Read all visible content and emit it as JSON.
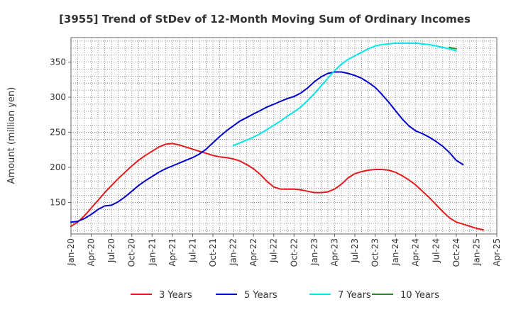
{
  "chart_data": {
    "type": "line",
    "title": "[3955]  Trend of StDev of 12-Month Moving Sum of Ordinary Incomes",
    "xlabel": "",
    "ylabel": "Amount (million yen)",
    "ylim": [
      105,
      385
    ],
    "yticks": [
      150,
      200,
      250,
      300,
      350
    ],
    "xticks": [
      "Jan-20",
      "Apr-20",
      "Jul-20",
      "Oct-20",
      "Jan-21",
      "Apr-21",
      "Jul-21",
      "Oct-21",
      "Jan-22",
      "Apr-22",
      "Jul-22",
      "Oct-22",
      "Jan-23",
      "Apr-23",
      "Jul-23",
      "Oct-23",
      "Jan-24",
      "Apr-24",
      "Jul-24",
      "Oct-24",
      "Jan-25",
      "Apr-25"
    ],
    "grid": true,
    "legend_position": "bottom",
    "series": [
      {
        "name": "3 Years",
        "color": "#e41a1c",
        "points": [
          [
            0,
            116
          ],
          [
            1,
            122
          ],
          [
            2,
            131
          ],
          [
            3,
            142
          ],
          [
            4,
            153
          ],
          [
            5,
            164
          ],
          [
            6,
            174
          ],
          [
            7,
            184
          ],
          [
            8,
            193
          ],
          [
            9,
            202
          ],
          [
            10,
            210
          ],
          [
            11,
            217
          ],
          [
            12,
            223
          ],
          [
            13,
            229
          ],
          [
            14,
            233
          ],
          [
            15,
            234
          ],
          [
            16,
            232
          ],
          [
            17,
            229
          ],
          [
            18,
            226
          ],
          [
            19,
            223
          ],
          [
            20,
            220
          ],
          [
            21,
            217
          ],
          [
            22,
            215
          ],
          [
            23,
            214
          ],
          [
            24,
            212
          ],
          [
            25,
            209
          ],
          [
            26,
            204
          ],
          [
            27,
            198
          ],
          [
            28,
            190
          ],
          [
            29,
            180
          ],
          [
            30,
            172
          ],
          [
            31,
            169
          ],
          [
            32,
            169
          ],
          [
            33,
            169
          ],
          [
            34,
            168
          ],
          [
            35,
            166
          ],
          [
            36,
            164
          ],
          [
            37,
            164
          ],
          [
            38,
            165
          ],
          [
            39,
            169
          ],
          [
            40,
            176
          ],
          [
            41,
            185
          ],
          [
            42,
            191
          ],
          [
            43,
            194
          ],
          [
            44,
            196
          ],
          [
            45,
            197
          ],
          [
            46,
            197
          ],
          [
            47,
            196
          ],
          [
            48,
            193
          ],
          [
            49,
            188
          ],
          [
            50,
            182
          ],
          [
            51,
            175
          ],
          [
            52,
            166
          ],
          [
            53,
            157
          ],
          [
            54,
            147
          ],
          [
            55,
            137
          ],
          [
            56,
            128
          ],
          [
            57,
            122
          ],
          [
            58,
            119
          ],
          [
            59,
            116
          ],
          [
            60,
            113
          ],
          [
            61,
            111
          ]
        ]
      },
      {
        "name": "5 Years",
        "color": "#0000cd",
        "points": [
          [
            0,
            122
          ],
          [
            1,
            123
          ],
          [
            2,
            127
          ],
          [
            3,
            133
          ],
          [
            4,
            140
          ],
          [
            5,
            145
          ],
          [
            6,
            146
          ],
          [
            7,
            151
          ],
          [
            8,
            158
          ],
          [
            9,
            166
          ],
          [
            10,
            174
          ],
          [
            11,
            181
          ],
          [
            12,
            187
          ],
          [
            13,
            193
          ],
          [
            14,
            198
          ],
          [
            15,
            202
          ],
          [
            16,
            206
          ],
          [
            17,
            210
          ],
          [
            18,
            214
          ],
          [
            19,
            219
          ],
          [
            20,
            226
          ],
          [
            21,
            235
          ],
          [
            22,
            244
          ],
          [
            23,
            252
          ],
          [
            24,
            259
          ],
          [
            25,
            266
          ],
          [
            26,
            271
          ],
          [
            27,
            276
          ],
          [
            28,
            281
          ],
          [
            29,
            286
          ],
          [
            30,
            290
          ],
          [
            31,
            294
          ],
          [
            32,
            298
          ],
          [
            33,
            301
          ],
          [
            34,
            306
          ],
          [
            35,
            313
          ],
          [
            36,
            322
          ],
          [
            37,
            329
          ],
          [
            38,
            334
          ],
          [
            39,
            336
          ],
          [
            40,
            336
          ],
          [
            41,
            334
          ],
          [
            42,
            331
          ],
          [
            43,
            327
          ],
          [
            44,
            321
          ],
          [
            45,
            314
          ],
          [
            46,
            304
          ],
          [
            47,
            293
          ],
          [
            48,
            281
          ],
          [
            49,
            269
          ],
          [
            50,
            259
          ],
          [
            51,
            252
          ],
          [
            52,
            248
          ],
          [
            53,
            243
          ],
          [
            54,
            237
          ],
          [
            55,
            230
          ],
          [
            56,
            221
          ],
          [
            57,
            210
          ],
          [
            58,
            204
          ]
        ]
      },
      {
        "name": "7 Years",
        "color": "#00e5ee",
        "points": [
          [
            24,
            231
          ],
          [
            25,
            235
          ],
          [
            26,
            239
          ],
          [
            27,
            243
          ],
          [
            28,
            248
          ],
          [
            29,
            254
          ],
          [
            30,
            260
          ],
          [
            31,
            266
          ],
          [
            32,
            273
          ],
          [
            33,
            279
          ],
          [
            34,
            286
          ],
          [
            35,
            295
          ],
          [
            36,
            305
          ],
          [
            37,
            316
          ],
          [
            38,
            327
          ],
          [
            39,
            338
          ],
          [
            40,
            347
          ],
          [
            41,
            354
          ],
          [
            42,
            359
          ],
          [
            43,
            364
          ],
          [
            44,
            369
          ],
          [
            45,
            373
          ],
          [
            46,
            375
          ],
          [
            47,
            376
          ],
          [
            48,
            377
          ],
          [
            49,
            377
          ],
          [
            50,
            377
          ],
          [
            51,
            377
          ],
          [
            52,
            376
          ],
          [
            53,
            375
          ],
          [
            54,
            373
          ],
          [
            55,
            371
          ],
          [
            56,
            369
          ],
          [
            57,
            366
          ]
        ]
      },
      {
        "name": "10 Years",
        "color": "#228b22",
        "points": [
          [
            56,
            371
          ],
          [
            57,
            369
          ]
        ]
      }
    ]
  }
}
